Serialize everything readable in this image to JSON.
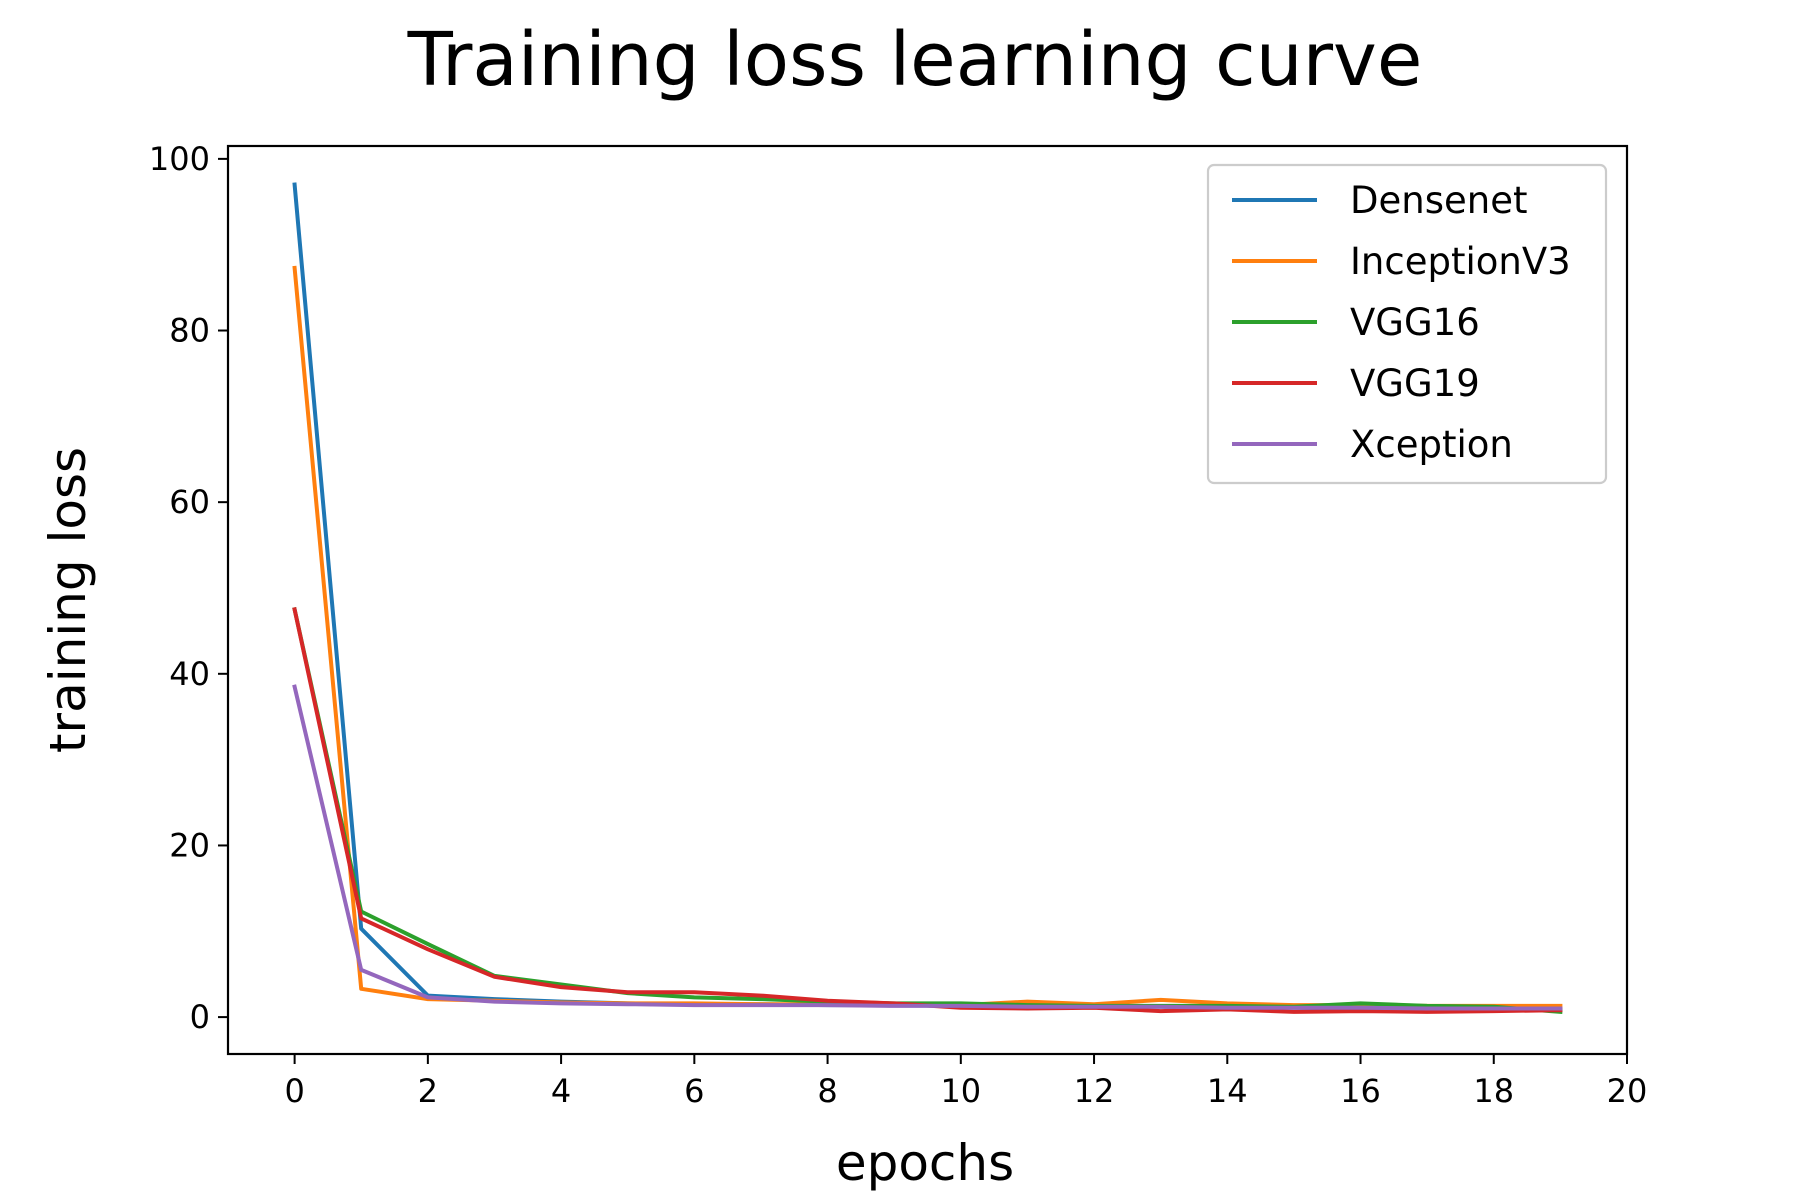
{
  "chart_data": {
    "type": "line",
    "title": "Training loss learning curve",
    "xlabel": "epochs",
    "ylabel": "training loss",
    "xlim": [
      -1,
      20
    ],
    "ylim": [
      -4.3,
      101.5
    ],
    "xticks": [
      0,
      2,
      4,
      6,
      8,
      10,
      12,
      14,
      16,
      18,
      20
    ],
    "yticks": [
      0,
      20,
      40,
      60,
      80,
      100
    ],
    "grid": false,
    "legend_position": "upper right",
    "x": [
      0,
      1,
      2,
      3,
      4,
      5,
      6,
      7,
      8,
      9,
      10,
      11,
      12,
      13,
      14,
      15,
      16,
      17,
      18,
      19
    ],
    "series": [
      {
        "name": "Densenet",
        "color": "#1f77b4",
        "values": [
          97,
          10.3,
          2.5,
          2.1,
          1.8,
          1.6,
          1.5,
          1.5,
          1.4,
          1.4,
          1.3,
          1.3,
          1.2,
          1.2,
          1.1,
          1.1,
          1.0,
          1.0,
          1.0,
          0.9
        ]
      },
      {
        "name": "InceptionV3",
        "color": "#ff7f0e",
        "values": [
          87.3,
          3.3,
          2.1,
          1.9,
          1.7,
          1.6,
          1.6,
          1.5,
          1.5,
          1.4,
          1.4,
          1.8,
          1.5,
          2.0,
          1.6,
          1.4,
          1.4,
          1.3,
          1.3,
          1.3
        ]
      },
      {
        "name": "VGG16",
        "color": "#2ca02c",
        "values": [
          47.5,
          12.3,
          8.5,
          4.8,
          3.8,
          2.8,
          2.3,
          2.1,
          1.8,
          1.6,
          1.6,
          1.4,
          1.3,
          1.3,
          1.3,
          1.2,
          1.6,
          1.3,
          1.2,
          0.6
        ]
      },
      {
        "name": "VGG19",
        "color": "#d62728",
        "values": [
          47.5,
          11.5,
          7.9,
          4.7,
          3.5,
          2.9,
          2.9,
          2.5,
          1.9,
          1.6,
          1.1,
          1.0,
          1.1,
          0.7,
          0.9,
          0.6,
          0.7,
          0.6,
          0.7,
          0.8
        ]
      },
      {
        "name": "Xception",
        "color": "#9467bd",
        "values": [
          38.5,
          5.5,
          2.3,
          1.8,
          1.6,
          1.5,
          1.4,
          1.4,
          1.4,
          1.3,
          1.3,
          1.2,
          1.2,
          1.2,
          1.1,
          1.1,
          1.1,
          1.0,
          1.0,
          1.0
        ]
      }
    ]
  }
}
